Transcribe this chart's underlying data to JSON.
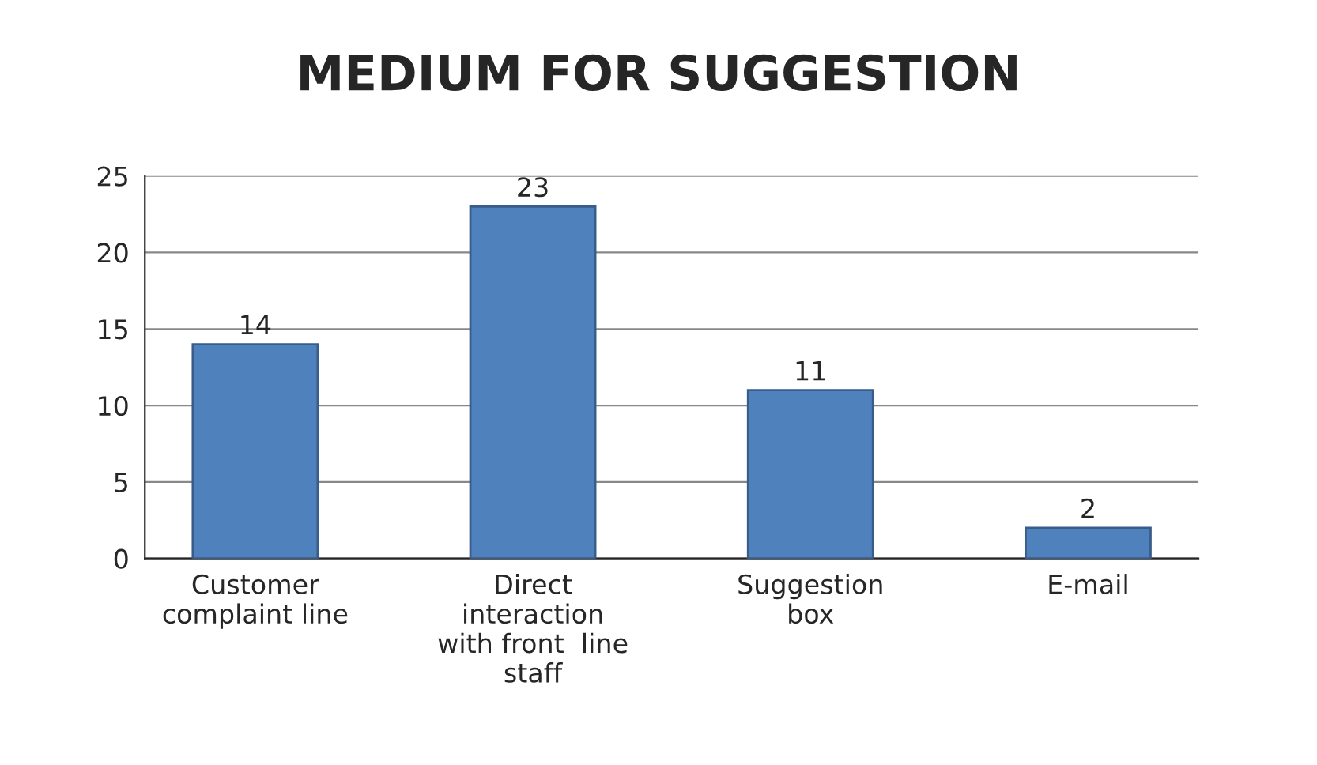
{
  "chart_data": {
    "type": "bar",
    "title": "MEDIUM FOR SUGGESTION",
    "categories": [
      "Customer\ncomplaint line",
      "Direct\ninteraction\nwith front  line\nstaff",
      "Suggestion\nbox",
      "E-mail"
    ],
    "values": [
      14,
      23,
      11,
      2
    ],
    "color": "#4f81bd",
    "ylim": [
      0,
      25
    ],
    "yticks": [
      0,
      5,
      10,
      15,
      20,
      25
    ],
    "grid": "y",
    "data_labels": true
  }
}
